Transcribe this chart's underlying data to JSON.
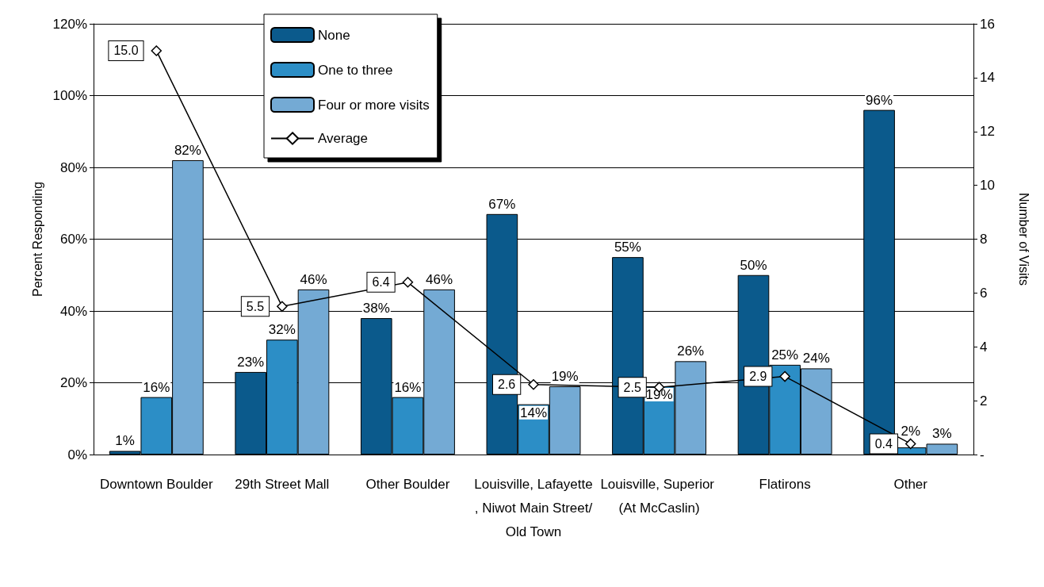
{
  "chart_data": {
    "type": "bar",
    "ylabel": "Percent Responding",
    "y2label": "Number of Visits",
    "categories": [
      "Downtown Boulder",
      "29th Street Mall",
      "Other Boulder",
      "Louisville, Lafayette, Niwot Main Street/Old Town",
      "Louisville, Superior (At McCaslin)",
      "Flatirons",
      "Other"
    ],
    "series": [
      {
        "name": "None",
        "color": "#0b5a8c",
        "values": [
          1,
          23,
          38,
          67,
          55,
          50,
          96
        ],
        "value_labels": [
          "1%",
          "23%",
          "38%",
          "67%",
          "55%",
          "50%",
          "96%"
        ]
      },
      {
        "name": "One to three",
        "color": "#2c8ec6",
        "values": [
          16,
          32,
          16,
          14,
          19,
          25,
          2
        ],
        "value_labels": [
          "16%",
          "32%",
          "16%",
          "14%",
          "19%",
          "25%",
          "2%"
        ]
      },
      {
        "name": "Four or more visits",
        "color": "#74aad4",
        "values": [
          82,
          46,
          46,
          19,
          26,
          24,
          3
        ],
        "value_labels": [
          "82%",
          "46%",
          "46%",
          "19%",
          "26%",
          "24%",
          "3%"
        ]
      },
      {
        "name": "Average",
        "type": "line",
        "axis": "y2",
        "color": "#000000",
        "marker": "diamond",
        "values": [
          15.0,
          5.5,
          6.4,
          2.6,
          2.5,
          2.9,
          0.4
        ],
        "value_labels": [
          "15.0",
          "5.5",
          "6.4",
          "2.6",
          "2.5",
          "2.9",
          "0.4"
        ]
      }
    ],
    "ylim": [
      0,
      120
    ],
    "yticks": [
      {
        "value": 0,
        "label": "0%"
      },
      {
        "value": 20,
        "label": "20%"
      },
      {
        "value": 40,
        "label": "40%"
      },
      {
        "value": 60,
        "label": "60%"
      },
      {
        "value": 80,
        "label": "80%"
      },
      {
        "value": 100,
        "label": "100%"
      },
      {
        "value": 120,
        "label": "120%"
      }
    ],
    "y2lim": [
      0,
      16
    ],
    "y2ticks": [
      {
        "value": 0,
        "label": "-"
      },
      2,
      4,
      6,
      8,
      10,
      12,
      14,
      16
    ],
    "grid": "y",
    "legend": "top"
  }
}
